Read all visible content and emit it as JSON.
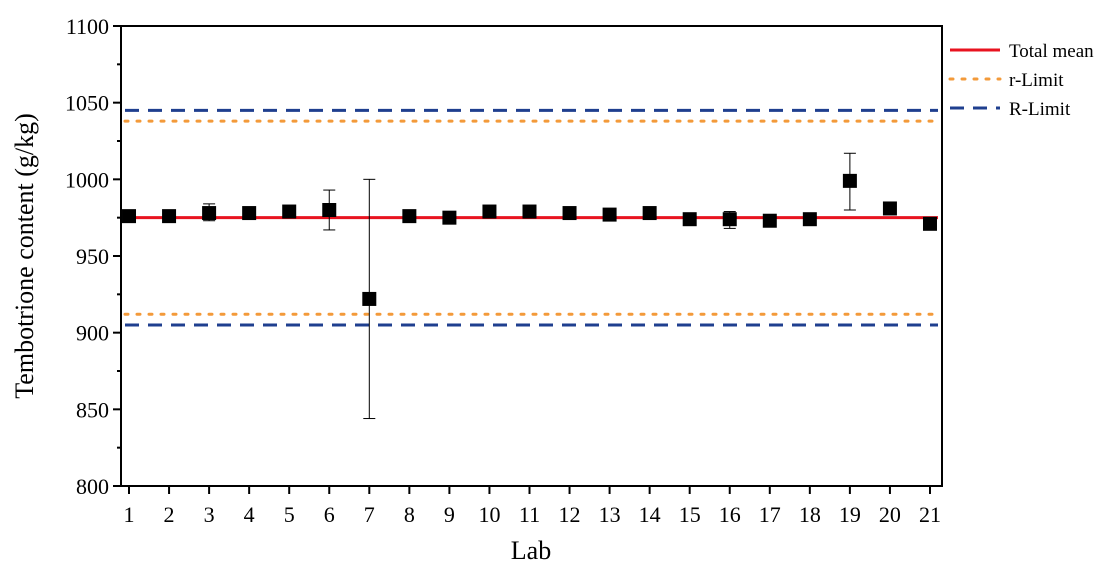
{
  "chart_data": {
    "type": "scatter",
    "xlabel": "Lab",
    "ylabel": "Tembotrione content (g/kg)",
    "xlim": [
      0.8,
      21.3
    ],
    "ylim": [
      800,
      1100
    ],
    "x_ticks": [
      1,
      2,
      3,
      4,
      5,
      6,
      7,
      8,
      9,
      10,
      11,
      12,
      13,
      14,
      15,
      16,
      17,
      18,
      19,
      20,
      21
    ],
    "y_ticks": [
      800,
      850,
      900,
      950,
      1000,
      1050,
      1100
    ],
    "grid": false,
    "legend_position": "right-top",
    "points": [
      {
        "x": 1,
        "y": 976,
        "err_low": null,
        "err_high": null
      },
      {
        "x": 2,
        "y": 976,
        "err_low": null,
        "err_high": null
      },
      {
        "x": 3,
        "y": 978,
        "err_low": 973,
        "err_high": 984
      },
      {
        "x": 4,
        "y": 978,
        "err_low": null,
        "err_high": null
      },
      {
        "x": 5,
        "y": 979,
        "err_low": 976,
        "err_high": 982
      },
      {
        "x": 6,
        "y": 980,
        "err_low": 967,
        "err_high": 993
      },
      {
        "x": 7,
        "y": 922,
        "err_low": 844,
        "err_high": 1000
      },
      {
        "x": 8,
        "y": 976,
        "err_low": null,
        "err_high": null
      },
      {
        "x": 9,
        "y": 975,
        "err_low": null,
        "err_high": null
      },
      {
        "x": 10,
        "y": 979,
        "err_low": null,
        "err_high": null
      },
      {
        "x": 11,
        "y": 979,
        "err_low": null,
        "err_high": null
      },
      {
        "x": 12,
        "y": 978,
        "err_low": null,
        "err_high": null
      },
      {
        "x": 13,
        "y": 977,
        "err_low": null,
        "err_high": null
      },
      {
        "x": 14,
        "y": 978,
        "err_low": null,
        "err_high": null
      },
      {
        "x": 15,
        "y": 974,
        "err_low": null,
        "err_high": null
      },
      {
        "x": 16,
        "y": 974,
        "err_low": 968,
        "err_high": 979
      },
      {
        "x": 17,
        "y": 973,
        "err_low": null,
        "err_high": null
      },
      {
        "x": 18,
        "y": 974,
        "err_low": null,
        "err_high": null
      },
      {
        "x": 19,
        "y": 999,
        "err_low": 980,
        "err_high": 1017
      },
      {
        "x": 20,
        "y": 981,
        "err_low": null,
        "err_high": null
      },
      {
        "x": 21,
        "y": 971,
        "err_low": null,
        "err_high": null
      }
    ],
    "reference_lines": [
      {
        "name": "Total mean",
        "values": [
          975
        ],
        "color": "#e8131f",
        "style": "solid"
      },
      {
        "name": "r-Limit",
        "values": [
          912,
          1038
        ],
        "color": "#f39a3a",
        "style": "dotted"
      },
      {
        "name": "R-Limit",
        "values": [
          905,
          1045
        ],
        "color": "#1f3f8f",
        "style": "dashed"
      }
    ],
    "marker_color": "#000000"
  }
}
